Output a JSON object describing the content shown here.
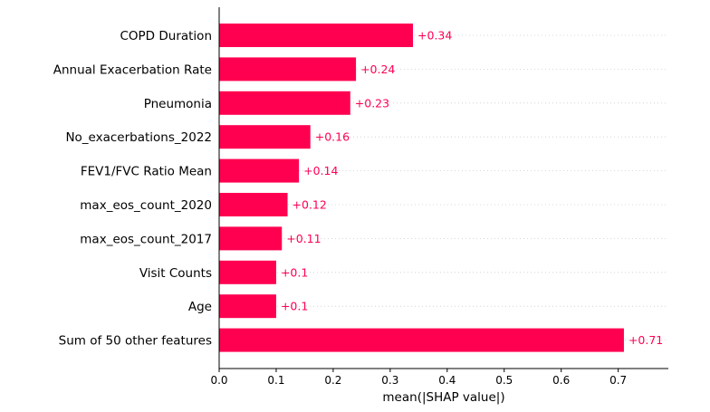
{
  "chart_data": {
    "type": "bar",
    "orientation": "horizontal",
    "title": "",
    "xlabel": "mean(|SHAP value|)",
    "ylabel": "",
    "xlim": [
      0,
      0.78
    ],
    "xticks": [
      "0.0",
      "0.1",
      "0.2",
      "0.3",
      "0.4",
      "0.5",
      "0.6",
      "0.7"
    ],
    "grid": "dotted horizontal row guides",
    "legend": "none",
    "bar_color": "#ff0051",
    "value_label_color": "#ff0051",
    "categories": [
      "COPD Duration",
      "Annual Exacerbation Rate",
      "Pneumonia",
      "No_exacerbations_2022",
      "FEV1/FVC Ratio Mean",
      "max_eos_count_2020",
      "max_eos_count_2017",
      "Visit Counts",
      "Age",
      "Sum of 50 other features"
    ],
    "values": [
      0.34,
      0.24,
      0.23,
      0.16,
      0.14,
      0.12,
      0.11,
      0.1,
      0.1,
      0.71
    ],
    "value_labels": [
      "+0.34",
      "+0.24",
      "+0.23",
      "+0.16",
      "+0.14",
      "+0.12",
      "+0.11",
      "+0.1",
      "+0.1",
      "+0.71"
    ]
  }
}
